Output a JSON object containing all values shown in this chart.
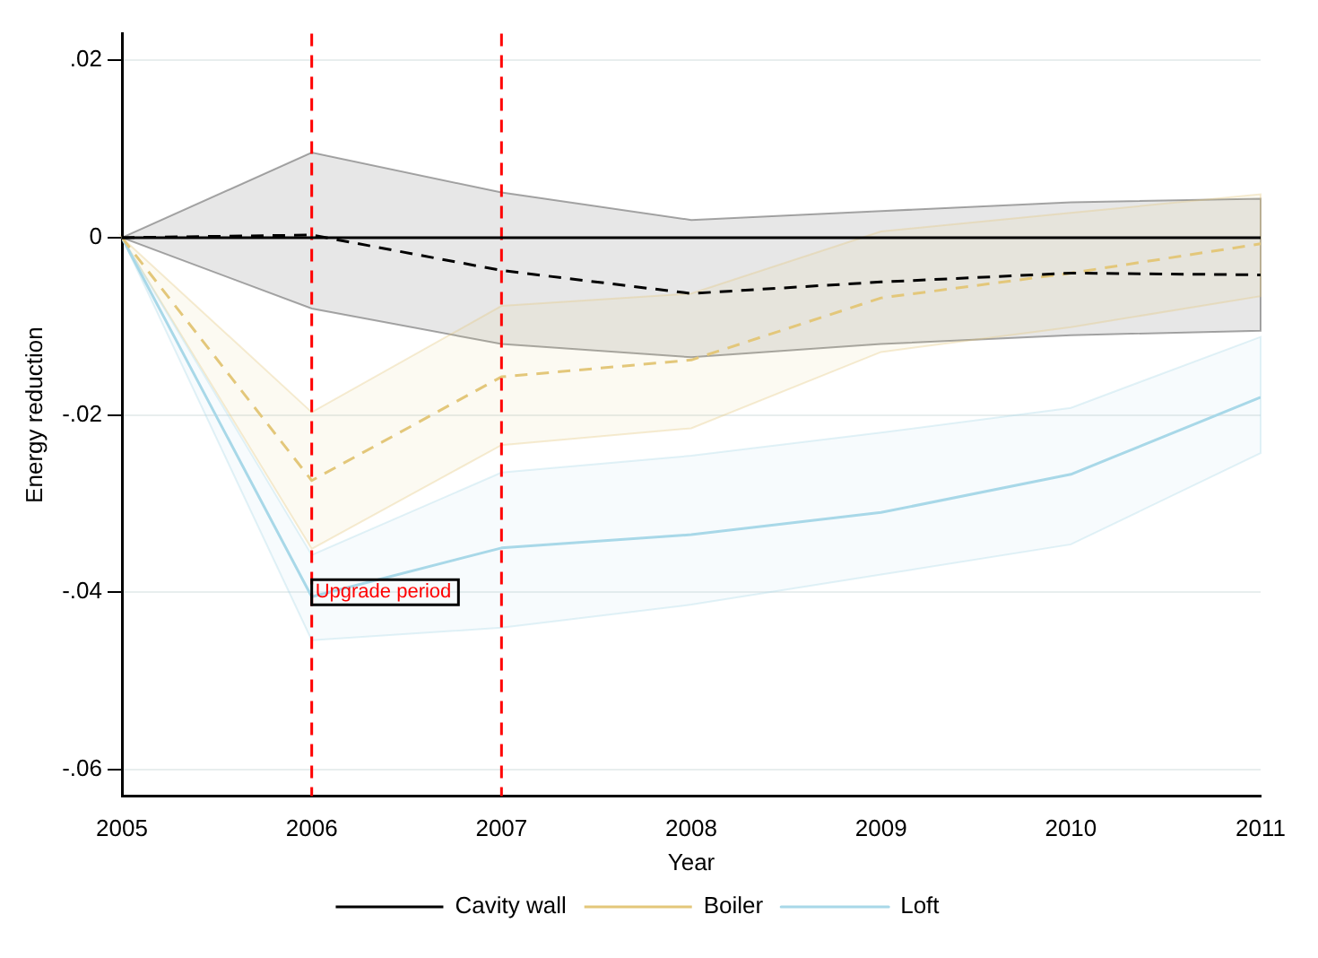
{
  "chart_data": {
    "type": "line",
    "xlabel": "Year",
    "ylabel": "Energy reduction",
    "x": [
      2005,
      2006,
      2007,
      2008,
      2009,
      2010,
      2011
    ],
    "series": [
      {
        "name": "Cavity wall",
        "color": "#000000",
        "line_style": "dashed",
        "values": [
          0,
          0.0003,
          -0.0037,
          -0.0063,
          -0.005,
          -0.004,
          -0.0042
        ],
        "lower": [
          0,
          -0.008,
          -0.012,
          -0.0135,
          -0.012,
          -0.011,
          -0.0105
        ],
        "upper": [
          0,
          0.0096,
          0.0051,
          0.002,
          0.003,
          0.004,
          0.0044
        ]
      },
      {
        "name": "Boiler",
        "color": "#e3c77a",
        "line_style": "dashed",
        "values": [
          0,
          -0.0274,
          -0.0157,
          -0.0138,
          -0.0068,
          -0.004,
          -0.0007
        ],
        "lower": [
          0,
          -0.0351,
          -0.0234,
          -0.0215,
          -0.0129,
          -0.0101,
          -0.0066
        ],
        "upper": [
          0,
          -0.0197,
          -0.0077,
          -0.0063,
          0.0007,
          0.0028,
          0.0049
        ]
      },
      {
        "name": "Loft",
        "color": "#a8d8e8",
        "line_style": "solid",
        "values": [
          0,
          -0.0405,
          -0.035,
          -0.0335,
          -0.031,
          -0.0267,
          -0.018
        ],
        "lower": [
          0,
          -0.0454,
          -0.044,
          -0.0414,
          -0.038,
          -0.0346,
          -0.0243
        ],
        "upper": [
          0,
          -0.0358,
          -0.0265,
          -0.0246,
          -0.022,
          -0.0192,
          -0.0112
        ]
      }
    ],
    "xlim": [
      2005,
      2011
    ],
    "xticks": [
      2005,
      2006,
      2007,
      2008,
      2009,
      2010,
      2011
    ],
    "ylim": [
      -0.063,
      0.023
    ],
    "yticks": [
      {
        "value": -0.06,
        "label": "-.06"
      },
      {
        "value": -0.04,
        "label": "-.04"
      },
      {
        "value": -0.02,
        "label": "-.02"
      },
      {
        "value": 0,
        "label": "0"
      },
      {
        "value": 0.02,
        "label": ".02"
      }
    ],
    "ref_lines": [
      {
        "axis": "x",
        "value": 2006,
        "color": "#ff0000",
        "line_style": "dashed"
      },
      {
        "axis": "x",
        "value": 2007,
        "color": "#ff0000",
        "line_style": "dashed"
      },
      {
        "axis": "y",
        "value": 0,
        "color": "#000000",
        "line_style": "solid"
      }
    ],
    "annotations": [
      {
        "text": "Upgrade period",
        "x": 2006,
        "y": -0.04
      }
    ],
    "grid": "y",
    "legend": "bottom",
    "marker": "none"
  }
}
